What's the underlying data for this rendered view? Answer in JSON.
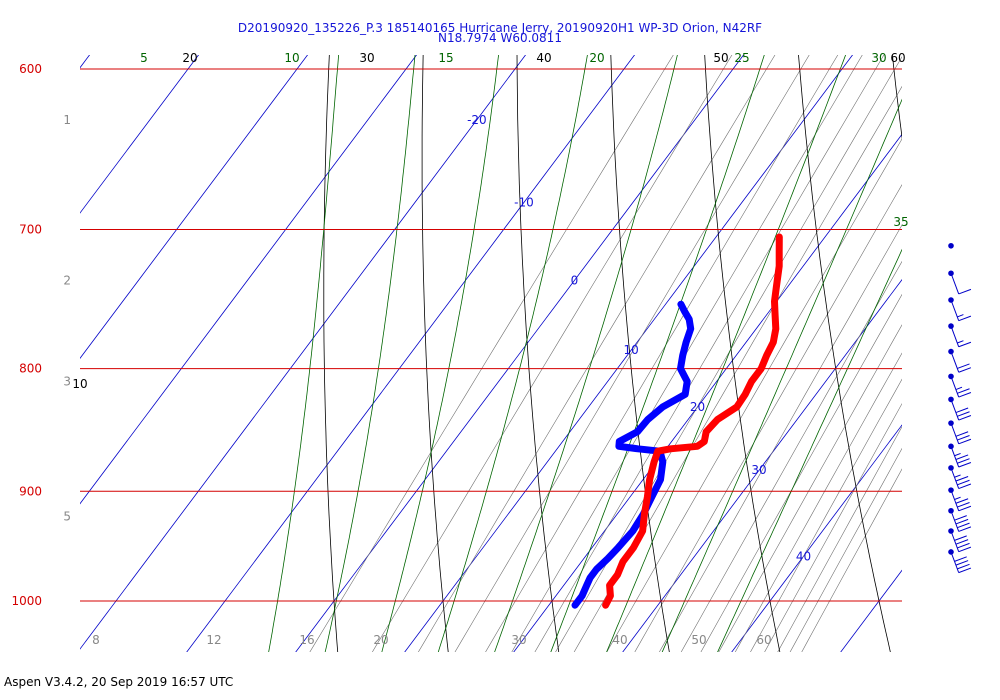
{
  "header": {
    "title_line1": "D20190920_135226_P.3 185140165 Hurricane Jerry, 20190920H1 WP-3D Orion, N42RF",
    "title_line2": "N18.7974 W60.0811"
  },
  "footer": {
    "text": "Aspen V3.4.2, 20 Sep 2019  16:57 UTC"
  },
  "chart_data": {
    "type": "line",
    "title": "D20190920_135226_P.3 185140165 Hurricane Jerry, 20190920H1 WP-3D Orion, N42RF",
    "subtitle": "N18.7974 W60.0811",
    "pressure_levels": [
      {
        "label": "600",
        "p": 600
      },
      {
        "label": "700",
        "p": 700
      },
      {
        "label": "800",
        "p": 800
      },
      {
        "label": "900",
        "p": 900
      },
      {
        "label": "1000",
        "p": 1000
      }
    ],
    "height_labels": [
      {
        "label": "1",
        "p": 630
      },
      {
        "label": "2",
        "p": 735
      },
      {
        "label": "3",
        "p": 810
      },
      {
        "label": "5",
        "p": 922
      }
    ],
    "isotherms": [
      -20,
      -10,
      0,
      10,
      20,
      30,
      40
    ],
    "mixing_ratio_bottom_labels": [
      "8",
      "12",
      "16",
      "20",
      "30",
      "40",
      "50",
      "60"
    ],
    "dry_adiabat_labels": [
      {
        "label": "20",
        "where": "top"
      },
      {
        "label": "30",
        "where": "top"
      },
      {
        "label": "40",
        "where": "top"
      },
      {
        "label": "50",
        "where": "top"
      },
      {
        "label": "60",
        "where": "top"
      },
      {
        "label": "10",
        "where": "left"
      }
    ],
    "moist_adiabat_labels": [
      {
        "label": "5",
        "where": "top"
      },
      {
        "label": "10",
        "where": "top"
      },
      {
        "label": "15",
        "where": "top"
      },
      {
        "label": "20",
        "where": "top"
      },
      {
        "label": "25",
        "where": "top"
      },
      {
        "label": "30",
        "where": "top"
      },
      {
        "label": "35",
        "where": "right"
      }
    ],
    "series": [
      {
        "color": "#ff0000",
        "points": [
          {
            "p": 1004,
            "t": 25.2
          },
          {
            "p": 995,
            "t": 25.0
          },
          {
            "p": 985,
            "t": 24.2
          },
          {
            "p": 975,
            "t": 24.2
          },
          {
            "p": 963,
            "t": 23.8
          },
          {
            "p": 950,
            "t": 23.8
          },
          {
            "p": 935,
            "t": 23.5
          },
          {
            "p": 920,
            "t": 22.5
          },
          {
            "p": 905,
            "t": 21.6
          },
          {
            "p": 890,
            "t": 20.6
          },
          {
            "p": 875,
            "t": 19.8
          },
          {
            "p": 866,
            "t": 19.4
          },
          {
            "p": 864,
            "t": 20.4
          },
          {
            "p": 862,
            "t": 22.7
          },
          {
            "p": 858,
            "t": 23.0
          },
          {
            "p": 850,
            "t": 22.5
          },
          {
            "p": 840,
            "t": 22.7
          },
          {
            "p": 830,
            "t": 23.6
          },
          {
            "p": 820,
            "t": 23.5
          },
          {
            "p": 810,
            "t": 23.2
          },
          {
            "p": 800,
            "t": 23.2
          },
          {
            "p": 790,
            "t": 22.8
          },
          {
            "p": 780,
            "t": 22.5
          },
          {
            "p": 770,
            "t": 21.8
          },
          {
            "p": 760,
            "t": 20.8
          },
          {
            "p": 750,
            "t": 19.8
          },
          {
            "p": 740,
            "t": 19.0
          },
          {
            "p": 725,
            "t": 17.8
          },
          {
            "p": 715,
            "t": 16.8
          },
          {
            "p": 705,
            "t": 15.8
          }
        ]
      },
      {
        "color": "#0000ff",
        "points": [
          {
            "p": 1004,
            "t": 22.4
          },
          {
            "p": 995,
            "t": 22.4
          },
          {
            "p": 985,
            "t": 22.1
          },
          {
            "p": 978,
            "t": 21.9
          },
          {
            "p": 970,
            "t": 21.9
          },
          {
            "p": 960,
            "t": 22.2
          },
          {
            "p": 950,
            "t": 22.4
          },
          {
            "p": 935,
            "t": 22.6
          },
          {
            "p": 920,
            "t": 22.4
          },
          {
            "p": 905,
            "t": 22.0
          },
          {
            "p": 890,
            "t": 21.6
          },
          {
            "p": 875,
            "t": 20.6
          },
          {
            "p": 866,
            "t": 19.6
          },
          {
            "p": 864,
            "t": 17.4
          },
          {
            "p": 862,
            "t": 15.5
          },
          {
            "p": 858,
            "t": 15.2
          },
          {
            "p": 850,
            "t": 16.2
          },
          {
            "p": 840,
            "t": 16.3
          },
          {
            "p": 830,
            "t": 16.8
          },
          {
            "p": 820,
            "t": 18.0
          },
          {
            "p": 810,
            "t": 17.3
          },
          {
            "p": 800,
            "t": 15.8
          },
          {
            "p": 790,
            "t": 15.1
          },
          {
            "p": 780,
            "t": 14.5
          },
          {
            "p": 770,
            "t": 14.0
          },
          {
            "p": 763,
            "t": 13.2
          },
          {
            "p": 757,
            "t": 12.2
          },
          {
            "p": 752,
            "t": 11.4
          }
        ]
      }
    ],
    "wind_barbs": [
      {
        "p": 711,
        "speed_kt": 0
      },
      {
        "p": 730,
        "speed_kt": 10
      },
      {
        "p": 749,
        "speed_kt": 15
      },
      {
        "p": 768,
        "speed_kt": 15
      },
      {
        "p": 787,
        "speed_kt": 20
      },
      {
        "p": 806,
        "speed_kt": 25
      },
      {
        "p": 824,
        "speed_kt": 30
      },
      {
        "p": 843,
        "speed_kt": 30
      },
      {
        "p": 862,
        "speed_kt": 35
      },
      {
        "p": 880,
        "speed_kt": 35
      },
      {
        "p": 899,
        "speed_kt": 35
      },
      {
        "p": 917,
        "speed_kt": 40
      },
      {
        "p": 935,
        "speed_kt": 40
      },
      {
        "p": 954,
        "speed_kt": 40
      }
    ],
    "colors": {
      "isobar": "#d40000",
      "isotherm": "#0000c8",
      "dry_adiabat": "#000000",
      "moist_adiabat": "#006400",
      "mixing_ratio": "#707070",
      "temperature": "#ff0000",
      "dewpoint": "#0000ff",
      "text_blue": "#1515d8"
    }
  }
}
